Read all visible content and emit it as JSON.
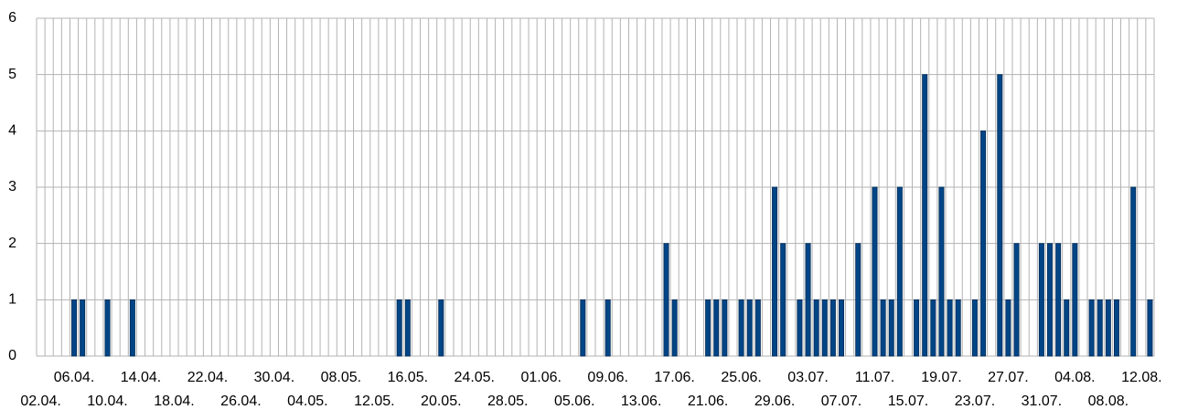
{
  "chart_data": {
    "type": "bar",
    "categories": [
      "02.04.",
      null,
      null,
      null,
      "06.04.",
      null,
      null,
      null,
      "10.04.",
      null,
      null,
      null,
      "14.04.",
      null,
      null,
      null,
      "18.04.",
      null,
      null,
      null,
      "22.04.",
      null,
      null,
      null,
      "26.04.",
      null,
      null,
      null,
      "30.04.",
      null,
      null,
      null,
      "04.05.",
      null,
      null,
      null,
      "08.05.",
      null,
      null,
      null,
      "12.05.",
      null,
      null,
      null,
      "16.05.",
      null,
      null,
      null,
      "20.05.",
      null,
      null,
      null,
      "24.05.",
      null,
      null,
      null,
      "28.05.",
      null,
      null,
      null,
      "01.06.",
      null,
      null,
      null,
      "05.06.",
      null,
      null,
      null,
      "09.06.",
      null,
      null,
      null,
      "13.06.",
      null,
      null,
      null,
      "17.06.",
      null,
      null,
      null,
      "21.06.",
      null,
      null,
      null,
      "25.06.",
      null,
      null,
      null,
      "29.06.",
      null,
      null,
      null,
      "03.07.",
      null,
      null,
      null,
      "07.07.",
      null,
      null,
      null,
      "11.07.",
      null,
      null,
      null,
      "15.07.",
      null,
      null,
      null,
      "19.07.",
      null,
      null,
      null,
      "23.07.",
      null,
      null,
      null,
      "27.07.",
      null,
      null,
      null,
      "31.07.",
      null,
      null,
      null,
      "04.08.",
      null,
      null,
      null,
      "08.08.",
      null,
      null,
      null,
      "12.08.",
      null
    ],
    "values": [
      0,
      0,
      0,
      0,
      1,
      1,
      0,
      0,
      1,
      0,
      0,
      1,
      0,
      0,
      0,
      0,
      0,
      0,
      0,
      0,
      0,
      0,
      0,
      0,
      0,
      0,
      0,
      0,
      0,
      0,
      0,
      0,
      0,
      0,
      0,
      0,
      0,
      0,
      0,
      0,
      0,
      0,
      0,
      1,
      1,
      0,
      0,
      0,
      1,
      0,
      0,
      0,
      0,
      0,
      0,
      0,
      0,
      0,
      0,
      0,
      0,
      0,
      0,
      0,
      0,
      1,
      0,
      0,
      1,
      0,
      0,
      0,
      0,
      0,
      0,
      2,
      1,
      0,
      0,
      0,
      1,
      1,
      1,
      0,
      1,
      1,
      1,
      0,
      3,
      2,
      0,
      1,
      2,
      1,
      1,
      1,
      1,
      0,
      2,
      0,
      3,
      1,
      1,
      3,
      0,
      1,
      5,
      1,
      3,
      1,
      1,
      0,
      1,
      4,
      0,
      5,
      1,
      2,
      0,
      0,
      2,
      2,
      2,
      1,
      2,
      0,
      1,
      1,
      1,
      1,
      0,
      3,
      0,
      1
    ],
    "color": "#004586",
    "ylim": [
      0,
      6
    ],
    "yticks": [
      0,
      1,
      2,
      3,
      4,
      5,
      6
    ],
    "grid": true
  }
}
